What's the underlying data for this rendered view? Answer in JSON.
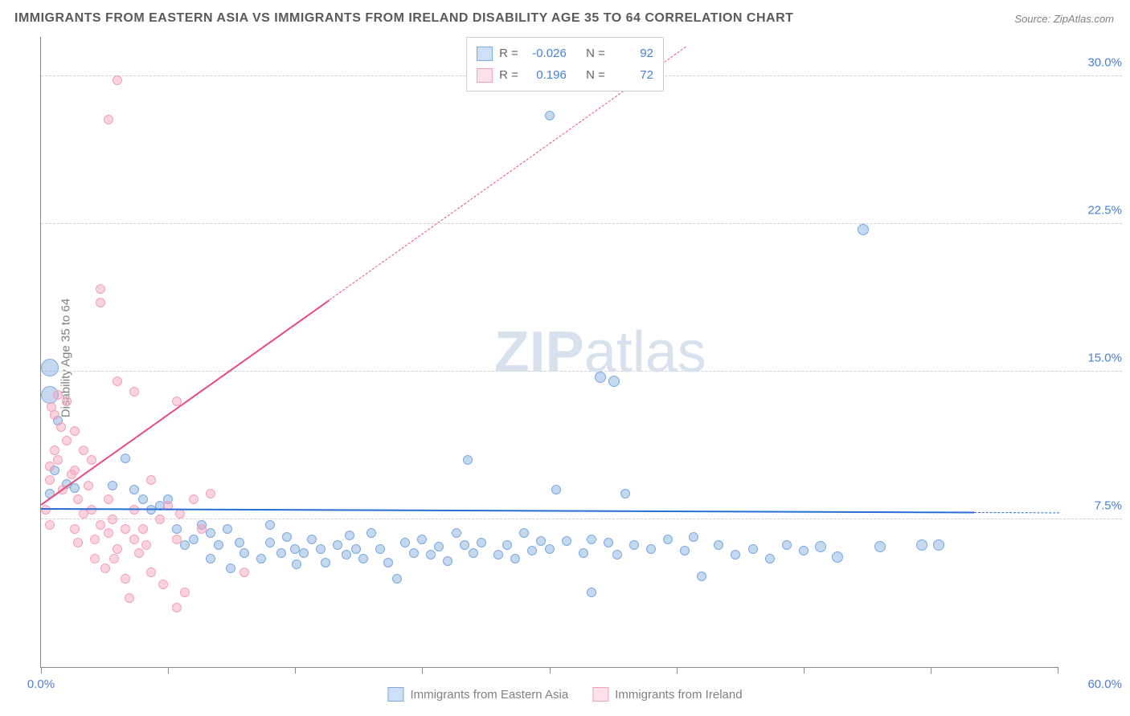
{
  "title": "IMMIGRANTS FROM EASTERN ASIA VS IMMIGRANTS FROM IRELAND DISABILITY AGE 35 TO 64 CORRELATION CHART",
  "source": "Source: ZipAtlas.com",
  "ylabel": "Disability Age 35 to 64",
  "watermark_zip": "ZIP",
  "watermark_atlas": "atlas",
  "chart": {
    "type": "scatter",
    "xlim": [
      0,
      60
    ],
    "ylim": [
      0,
      32
    ],
    "xticks": [
      0,
      7.5,
      15,
      22.5,
      30,
      37.5,
      45,
      52.5,
      60
    ],
    "xtick_labels": {
      "0": "0.0%",
      "60": "60.0%"
    },
    "yticks": [
      7.5,
      15,
      22.5,
      30
    ],
    "ytick_labels": [
      "7.5%",
      "15.0%",
      "22.5%",
      "30.0%"
    ],
    "background_color": "#ffffff",
    "grid_color": "#d0d0d0",
    "axis_color": "#888888"
  },
  "series": [
    {
      "name": "Immigrants from Eastern Asia",
      "color_fill": "rgba(125, 169, 222, 0.45)",
      "color_stroke": "#7da9de",
      "swatch_fill": "#cde0f5",
      "swatch_border": "#7da9de",
      "R": "-0.026",
      "N": "92",
      "trend": {
        "x1": 0,
        "y1": 8.1,
        "x2": 60,
        "y2": 7.9,
        "solid_until_x": 55,
        "color": "#2b6cd4"
      },
      "points": [
        [
          0.5,
          15.2,
          22
        ],
        [
          0.5,
          13.8,
          22
        ],
        [
          1.0,
          12.5,
          12
        ],
        [
          0.8,
          10.0,
          12
        ],
        [
          0.5,
          8.8,
          12
        ],
        [
          1.5,
          9.3,
          12
        ],
        [
          2.0,
          9.1,
          12
        ],
        [
          4.2,
          9.2,
          12
        ],
        [
          5.0,
          10.6,
          12
        ],
        [
          5.5,
          9.0,
          12
        ],
        [
          6.0,
          8.5,
          12
        ],
        [
          6.5,
          8.0,
          12
        ],
        [
          7.0,
          8.2,
          12
        ],
        [
          7.5,
          8.5,
          12
        ],
        [
          8.0,
          7.0,
          12
        ],
        [
          8.5,
          6.2,
          12
        ],
        [
          9.0,
          6.5,
          12
        ],
        [
          9.5,
          7.2,
          12
        ],
        [
          10.0,
          6.8,
          12
        ],
        [
          10.0,
          5.5,
          12
        ],
        [
          10.5,
          6.2,
          12
        ],
        [
          11.0,
          7.0,
          12
        ],
        [
          11.2,
          5.0,
          12
        ],
        [
          11.7,
          6.3,
          12
        ],
        [
          12.0,
          5.8,
          12
        ],
        [
          13.0,
          5.5,
          12
        ],
        [
          13.5,
          6.3,
          12
        ],
        [
          13.5,
          7.2,
          12
        ],
        [
          14.2,
          5.8,
          12
        ],
        [
          14.5,
          6.6,
          12
        ],
        [
          15.0,
          6.0,
          12
        ],
        [
          15.1,
          5.2,
          12
        ],
        [
          15.5,
          5.8,
          12
        ],
        [
          16.0,
          6.5,
          12
        ],
        [
          16.5,
          6.0,
          12
        ],
        [
          16.8,
          5.3,
          12
        ],
        [
          17.5,
          6.2,
          12
        ],
        [
          18.0,
          5.7,
          12
        ],
        [
          18.2,
          6.7,
          12
        ],
        [
          18.6,
          6.0,
          12
        ],
        [
          19.0,
          5.5,
          12
        ],
        [
          19.5,
          6.8,
          12
        ],
        [
          20.0,
          6.0,
          12
        ],
        [
          20.5,
          5.3,
          12
        ],
        [
          21.0,
          4.5,
          12
        ],
        [
          21.5,
          6.3,
          12
        ],
        [
          22.0,
          5.8,
          12
        ],
        [
          22.5,
          6.5,
          12
        ],
        [
          23.0,
          5.7,
          12
        ],
        [
          23.5,
          6.1,
          12
        ],
        [
          24.0,
          5.4,
          12
        ],
        [
          24.5,
          6.8,
          12
        ],
        [
          25.0,
          6.2,
          12
        ],
        [
          25.5,
          5.8,
          12
        ],
        [
          25.2,
          10.5,
          12
        ],
        [
          26.0,
          6.3,
          12
        ],
        [
          27.0,
          5.7,
          12
        ],
        [
          27.5,
          6.2,
          12
        ],
        [
          28.0,
          5.5,
          12
        ],
        [
          28.5,
          6.8,
          12
        ],
        [
          29.0,
          5.9,
          12
        ],
        [
          29.5,
          6.4,
          12
        ],
        [
          30.0,
          6.0,
          12
        ],
        [
          30.4,
          9.0,
          12
        ],
        [
          30.0,
          28.0,
          12
        ],
        [
          31.0,
          6.4,
          12
        ],
        [
          32.0,
          5.8,
          12
        ],
        [
          32.5,
          6.5,
          12
        ],
        [
          32.5,
          3.8,
          12
        ],
        [
          33.0,
          14.7,
          14
        ],
        [
          33.5,
          6.3,
          12
        ],
        [
          33.8,
          14.5,
          14
        ],
        [
          34.0,
          5.7,
          12
        ],
        [
          34.5,
          8.8,
          12
        ],
        [
          35.0,
          6.2,
          12
        ],
        [
          36.0,
          6.0,
          12
        ],
        [
          37.0,
          6.5,
          12
        ],
        [
          38.0,
          5.9,
          12
        ],
        [
          38.5,
          6.6,
          12
        ],
        [
          39.0,
          4.6,
          12
        ],
        [
          40.0,
          6.2,
          12
        ],
        [
          41.0,
          5.7,
          12
        ],
        [
          42.0,
          6.0,
          12
        ],
        [
          43.0,
          5.5,
          12
        ],
        [
          44.0,
          6.2,
          12
        ],
        [
          45.0,
          5.9,
          12
        ],
        [
          46.0,
          6.1,
          14
        ],
        [
          47.0,
          5.6,
          14
        ],
        [
          48.5,
          22.2,
          14
        ],
        [
          49.5,
          6.1,
          14
        ],
        [
          52.0,
          6.2,
          14
        ],
        [
          53.0,
          6.2,
          14
        ]
      ]
    },
    {
      "name": "Immigrants from Ireland",
      "color_fill": "rgba(242, 160, 185, 0.45)",
      "color_stroke": "#f2a0b9",
      "swatch_fill": "#fce1e9",
      "swatch_border": "#f2a0b9",
      "R": "0.196",
      "N": "72",
      "trend": {
        "x1": 0,
        "y1": 8.3,
        "x2": 38,
        "y2": 31.5,
        "solid_until_x": 17,
        "color": "#e94d7c"
      },
      "points": [
        [
          0.3,
          8.0,
          12
        ],
        [
          0.5,
          9.5,
          12
        ],
        [
          0.5,
          10.2,
          12
        ],
        [
          0.8,
          11.0,
          12
        ],
        [
          0.5,
          7.2,
          12
        ],
        [
          0.6,
          13.2,
          12
        ],
        [
          0.8,
          12.8,
          12
        ],
        [
          1.0,
          13.8,
          12
        ],
        [
          1.0,
          10.5,
          12
        ],
        [
          1.2,
          12.2,
          12
        ],
        [
          1.3,
          9.0,
          12
        ],
        [
          1.5,
          11.5,
          12
        ],
        [
          1.5,
          13.5,
          12
        ],
        [
          1.8,
          9.8,
          12
        ],
        [
          2.0,
          10.0,
          12
        ],
        [
          2.0,
          12.0,
          12
        ],
        [
          2.2,
          8.5,
          12
        ],
        [
          2.0,
          7.0,
          12
        ],
        [
          2.2,
          6.3,
          12
        ],
        [
          2.5,
          11.0,
          12
        ],
        [
          2.5,
          7.8,
          12
        ],
        [
          2.8,
          9.2,
          12
        ],
        [
          3.0,
          10.5,
          12
        ],
        [
          3.0,
          8.0,
          12
        ],
        [
          3.2,
          6.5,
          12
        ],
        [
          3.2,
          5.5,
          12
        ],
        [
          3.5,
          7.2,
          12
        ],
        [
          3.5,
          19.2,
          12
        ],
        [
          3.5,
          18.5,
          12
        ],
        [
          3.8,
          5.0,
          12
        ],
        [
          4.0,
          8.5,
          12
        ],
        [
          4.0,
          6.8,
          12
        ],
        [
          4.2,
          7.5,
          12
        ],
        [
          4.3,
          5.5,
          12
        ],
        [
          4.5,
          6.0,
          12
        ],
        [
          4.5,
          14.5,
          12
        ],
        [
          4.5,
          29.8,
          12
        ],
        [
          4,
          27.8,
          12
        ],
        [
          5.0,
          7.0,
          12
        ],
        [
          5.0,
          4.5,
          12
        ],
        [
          5.2,
          3.5,
          12
        ],
        [
          5.5,
          6.5,
          12
        ],
        [
          5.5,
          8.0,
          12
        ],
        [
          5.5,
          14.0,
          12
        ],
        [
          5.8,
          5.8,
          12
        ],
        [
          6.0,
          7.0,
          12
        ],
        [
          6.2,
          6.2,
          12
        ],
        [
          6.5,
          4.8,
          12
        ],
        [
          6.5,
          9.5,
          12
        ],
        [
          7.0,
          7.5,
          12
        ],
        [
          7.2,
          4.2,
          12
        ],
        [
          7.5,
          8.2,
          12
        ],
        [
          8.0,
          6.5,
          12
        ],
        [
          8.0,
          13.5,
          12
        ],
        [
          8.2,
          7.8,
          12
        ],
        [
          8.0,
          3.0,
          12
        ],
        [
          8.5,
          3.8,
          12
        ],
        [
          9.0,
          8.5,
          12
        ],
        [
          9.5,
          7.0,
          12
        ],
        [
          10.0,
          8.8,
          12
        ],
        [
          12.0,
          4.8,
          12
        ]
      ]
    }
  ],
  "legend_top": {
    "r_label": "R =",
    "n_label": "N ="
  },
  "legend_bottom": [
    {
      "label": "Immigrants from Eastern Asia",
      "series": 0
    },
    {
      "label": "Immigrants from Ireland",
      "series": 1
    }
  ]
}
